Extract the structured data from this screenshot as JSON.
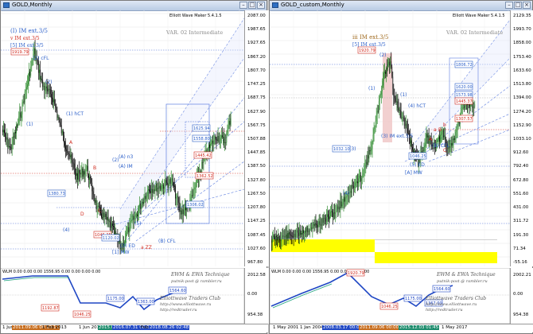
{
  "colors": {
    "bull": "#2e8b2e",
    "bear": "#000000",
    "accent": "#2b5fc9",
    "fan": "#5f7fe0",
    "red": "#d12b1f",
    "wlm": "#1f47c4",
    "yellow": "#ffff00",
    "pink": "#efc4c4"
  },
  "left": {
    "title": "GOLD,Monthly",
    "maker": "Elliott Wave Maker 5.4.1.5",
    "var_label": "VAR. 02 Intermediate",
    "legend": [
      "(I) IM ext.3/5",
      "v IM ext.3/5",
      "[5] IM ext.3/5"
    ],
    "price_ticks": [
      "2087.00",
      "1987.65",
      "1927.65",
      "1867.20",
      "1807.70",
      "1747.25",
      "1687.75",
      "1627.90",
      "1567.75",
      "1507.88",
      "1447.85",
      "1387.50",
      "1327.80",
      "1267.50",
      "1207.80",
      "1147.25",
      "1087.45",
      "1027.60",
      "967.80"
    ],
    "labels": [
      {
        "t": "(2) cFL",
        "c": "accent"
      },
      {
        "t": "(2)",
        "c": "accent"
      },
      {
        "t": "(1)",
        "c": "accent"
      },
      {
        "t": "(2)",
        "c": "accent"
      },
      {
        "t": "(1) hCT",
        "c": "accent"
      },
      {
        "t": "(A) IM",
        "c": "accent"
      },
      {
        "t": "(B) CFL",
        "c": "accent"
      },
      {
        "t": "(3) ED",
        "c": "accent"
      },
      {
        "t": "[1] MW",
        "c": "accent"
      },
      {
        "t": "a ZZ",
        "c": "red"
      },
      {
        "t": "(A) n3",
        "c": "accent"
      },
      {
        "t": "A",
        "c": "red"
      },
      {
        "t": "B",
        "c": "red"
      },
      {
        "t": "C",
        "c": "red"
      },
      {
        "t": "D",
        "c": "red"
      },
      {
        "t": "(4)",
        "c": "accent"
      },
      {
        "t": "(5)",
        "c": "accent"
      }
    ],
    "boxes": [
      {
        "t": "1919.79",
        "c": "red"
      },
      {
        "t": "1380.73",
        "c": "accent"
      },
      {
        "t": "1046.25",
        "c": "red"
      },
      {
        "t": "1120.02",
        "c": "accent"
      },
      {
        "t": "1306.02",
        "c": "accent"
      },
      {
        "t": "1625.94",
        "c": "accent"
      },
      {
        "t": "1558.80",
        "c": "accent"
      },
      {
        "t": "1445.42",
        "c": "red"
      },
      {
        "t": "1362.52",
        "c": "red"
      }
    ],
    "wlm": {
      "header": "WLM 0.00 0.00 0.00 1556.95 0.00 0.00 0.00 0.00",
      "credit1": "EWM & EWA Technique",
      "credit2": "putnik-post @ rambler.ru",
      "credit3": "Elliottwave Traders Club",
      "credit4": "http://www.elliottwave.ru",
      "credit5": "http://redtrader.ru",
      "right_ticks": [
        "2012.58",
        "0.00",
        "954.38"
      ],
      "boxes": [
        "1192.87",
        "1046.25",
        "1175.00",
        "1363.00",
        "1564.60"
      ]
    },
    "time_ticks": [
      {
        "t": "1 Jun 2011"
      },
      {
        "t": "2011.09.06 00:10:11",
        "hl": "#c66c1c"
      },
      {
        "t": "1 Feb 2013"
      },
      {
        "t": "1 Jun 2013"
      },
      {
        "t": "2015.07.31 01:45",
        "hl": "#1a8a6a"
      },
      {
        "t": "2016.07.31 00:01:45",
        "hl": "#1f47c4"
      },
      {
        "t": "Feb 2"
      },
      {
        "t": "2018.08.26 02:48",
        "hl": "#1f47c4"
      }
    ]
  },
  "right": {
    "title": "GOLD_custom,Monthly",
    "maker": "Elliott Wave Maker 5.4.1.5",
    "var_label": "VAR. 02 Intermediate",
    "legend": [
      "iii IM ext.3/5",
      "[5] IM ext.3/5"
    ],
    "price_ticks": [
      "2129.35",
      "1993.70",
      "1858.00",
      "1753.40",
      "1633.60",
      "1513.80",
      "1394.00",
      "1274.20",
      "1152.90",
      "1033.10",
      "912.60",
      "792.40",
      "672.80",
      "551.60",
      "431.00",
      "311.72",
      "191.30",
      "71.34",
      "-55.16"
    ],
    "labels": [
      {
        "t": "(2)",
        "c": "accent"
      },
      {
        "t": "(3)",
        "c": "accent"
      },
      {
        "t": "(4)",
        "c": "accent"
      },
      {
        "t": "(5) ED",
        "c": "accent"
      },
      {
        "t": "[A] MW",
        "c": "accent"
      },
      {
        "t": "(3) IM ext.3/5",
        "c": "accent"
      },
      {
        "t": "(4) hCT",
        "c": "accent"
      },
      {
        "t": "(B) CFL",
        "c": "accent"
      },
      {
        "t": "A",
        "c": "red"
      },
      {
        "t": "B",
        "c": "red"
      },
      {
        "t": "C",
        "c": "red"
      },
      {
        "t": "(1)",
        "c": "accent"
      },
      {
        "t": "(1)",
        "c": "accent"
      },
      {
        "t": "(4)",
        "c": "accent"
      },
      {
        "t": "a",
        "c": "red"
      },
      {
        "t": "b",
        "c": "red"
      }
    ],
    "boxes": [
      {
        "t": "1920.79",
        "c": "red"
      },
      {
        "t": "1032.10",
        "c": "accent"
      },
      {
        "t": "1046.25",
        "c": "accent"
      },
      {
        "t": "1806.72",
        "c": "accent"
      },
      {
        "t": "1620.00",
        "c": "accent"
      },
      {
        "t": "1573.98",
        "c": "accent"
      },
      {
        "t": "1445.37",
        "c": "red"
      },
      {
        "t": "1307.57",
        "c": "red"
      }
    ],
    "wlm": {
      "header": "WLM 0.00 0.00 0.00 1556.95 0.00 0.00 0.00 0.00",
      "credit1": "EWM & EWA Technique",
      "credit2": "putnik-post @ rambler.ru",
      "credit3": "Elliottwave Traders Club",
      "credit4": "http://www.elliottwave.ru",
      "credit5": "http://redtrader.ru",
      "right_ticks": [
        "2002.21",
        "0.00",
        "954.38"
      ],
      "boxes": [
        "1920.79",
        "1046.25",
        "1175.00",
        "1564.60",
        "1367.00"
      ]
    },
    "time_ticks": [
      {
        "t": "1 May 2001"
      },
      {
        "t": "1 Jan 2004"
      },
      {
        "t": "2008.03.17 00:00",
        "hl": "#1f47c4"
      },
      {
        "t": "2011.09.06 00:00",
        "hl": "#c66c1c"
      },
      {
        "t": "2015.12.03 01:45",
        "hl": "#1a8a6a"
      },
      {
        "t": "1 May 2017"
      }
    ]
  }
}
